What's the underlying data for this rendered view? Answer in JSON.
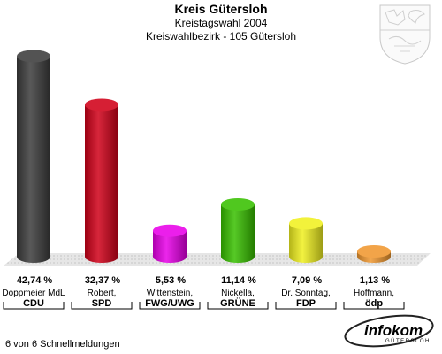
{
  "header": {
    "title": "Kreis Gütersloh",
    "subtitle": "Kreistagswahl 2004",
    "district": "Kreiswahlbezirk - 105 Gütersloh"
  },
  "footer": {
    "status": "6 von 6 Schnellmeldungen"
  },
  "logo": {
    "name": "infokom",
    "tagline": "GÜTERSLOH"
  },
  "chart_data": {
    "type": "bar",
    "title": "Kreis Gütersloh",
    "subtitle": "Kreistagswahl 2004",
    "categories": [
      "CDU",
      "SPD",
      "FWG/UWG",
      "GRÜNE",
      "FDP",
      "ödp"
    ],
    "candidates": [
      "Doppmeier MdL",
      "Robert,",
      "Wittenstein,",
      "Nickella,",
      "Dr. Sonntag,",
      "Hoffmann,"
    ],
    "values": [
      42.74,
      32.37,
      5.53,
      11.14,
      7.09,
      1.13
    ],
    "value_labels": [
      "42,74 %",
      "32,37 %",
      "5,53 %",
      "11,14 %",
      "7,09 %",
      "1,13 %"
    ],
    "colors": [
      "#3c3c3c",
      "#d00018",
      "#e800e8",
      "#38c000",
      "#f0f020",
      "#f09830"
    ],
    "ylim": [
      0,
      45
    ],
    "grid": false,
    "legend": "none"
  }
}
